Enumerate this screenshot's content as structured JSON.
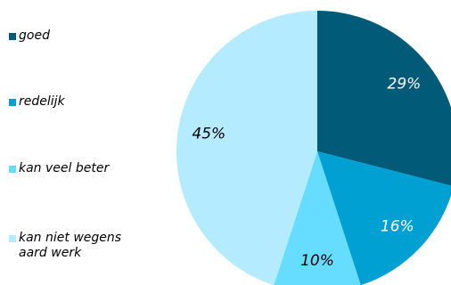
{
  "chart_data": {
    "type": "pie",
    "title": "",
    "legend_position": "left",
    "slices": [
      {
        "label": "goed",
        "value": 29,
        "value_label": "29%",
        "color": "#005a78",
        "label_color": "#ffffff"
      },
      {
        "label": "redelijk",
        "value": 16,
        "value_label": "16%",
        "color": "#00a0d2",
        "label_color": "#ffffff"
      },
      {
        "label": "kan veel beter",
        "value": 10,
        "value_label": "10%",
        "color": "#66dcff",
        "label_color": "#000000"
      },
      {
        "label": "kan niet wegens\naard werk",
        "value": 45,
        "value_label": "45%",
        "color": "#b4ebff",
        "label_color": "#000000"
      }
    ]
  }
}
